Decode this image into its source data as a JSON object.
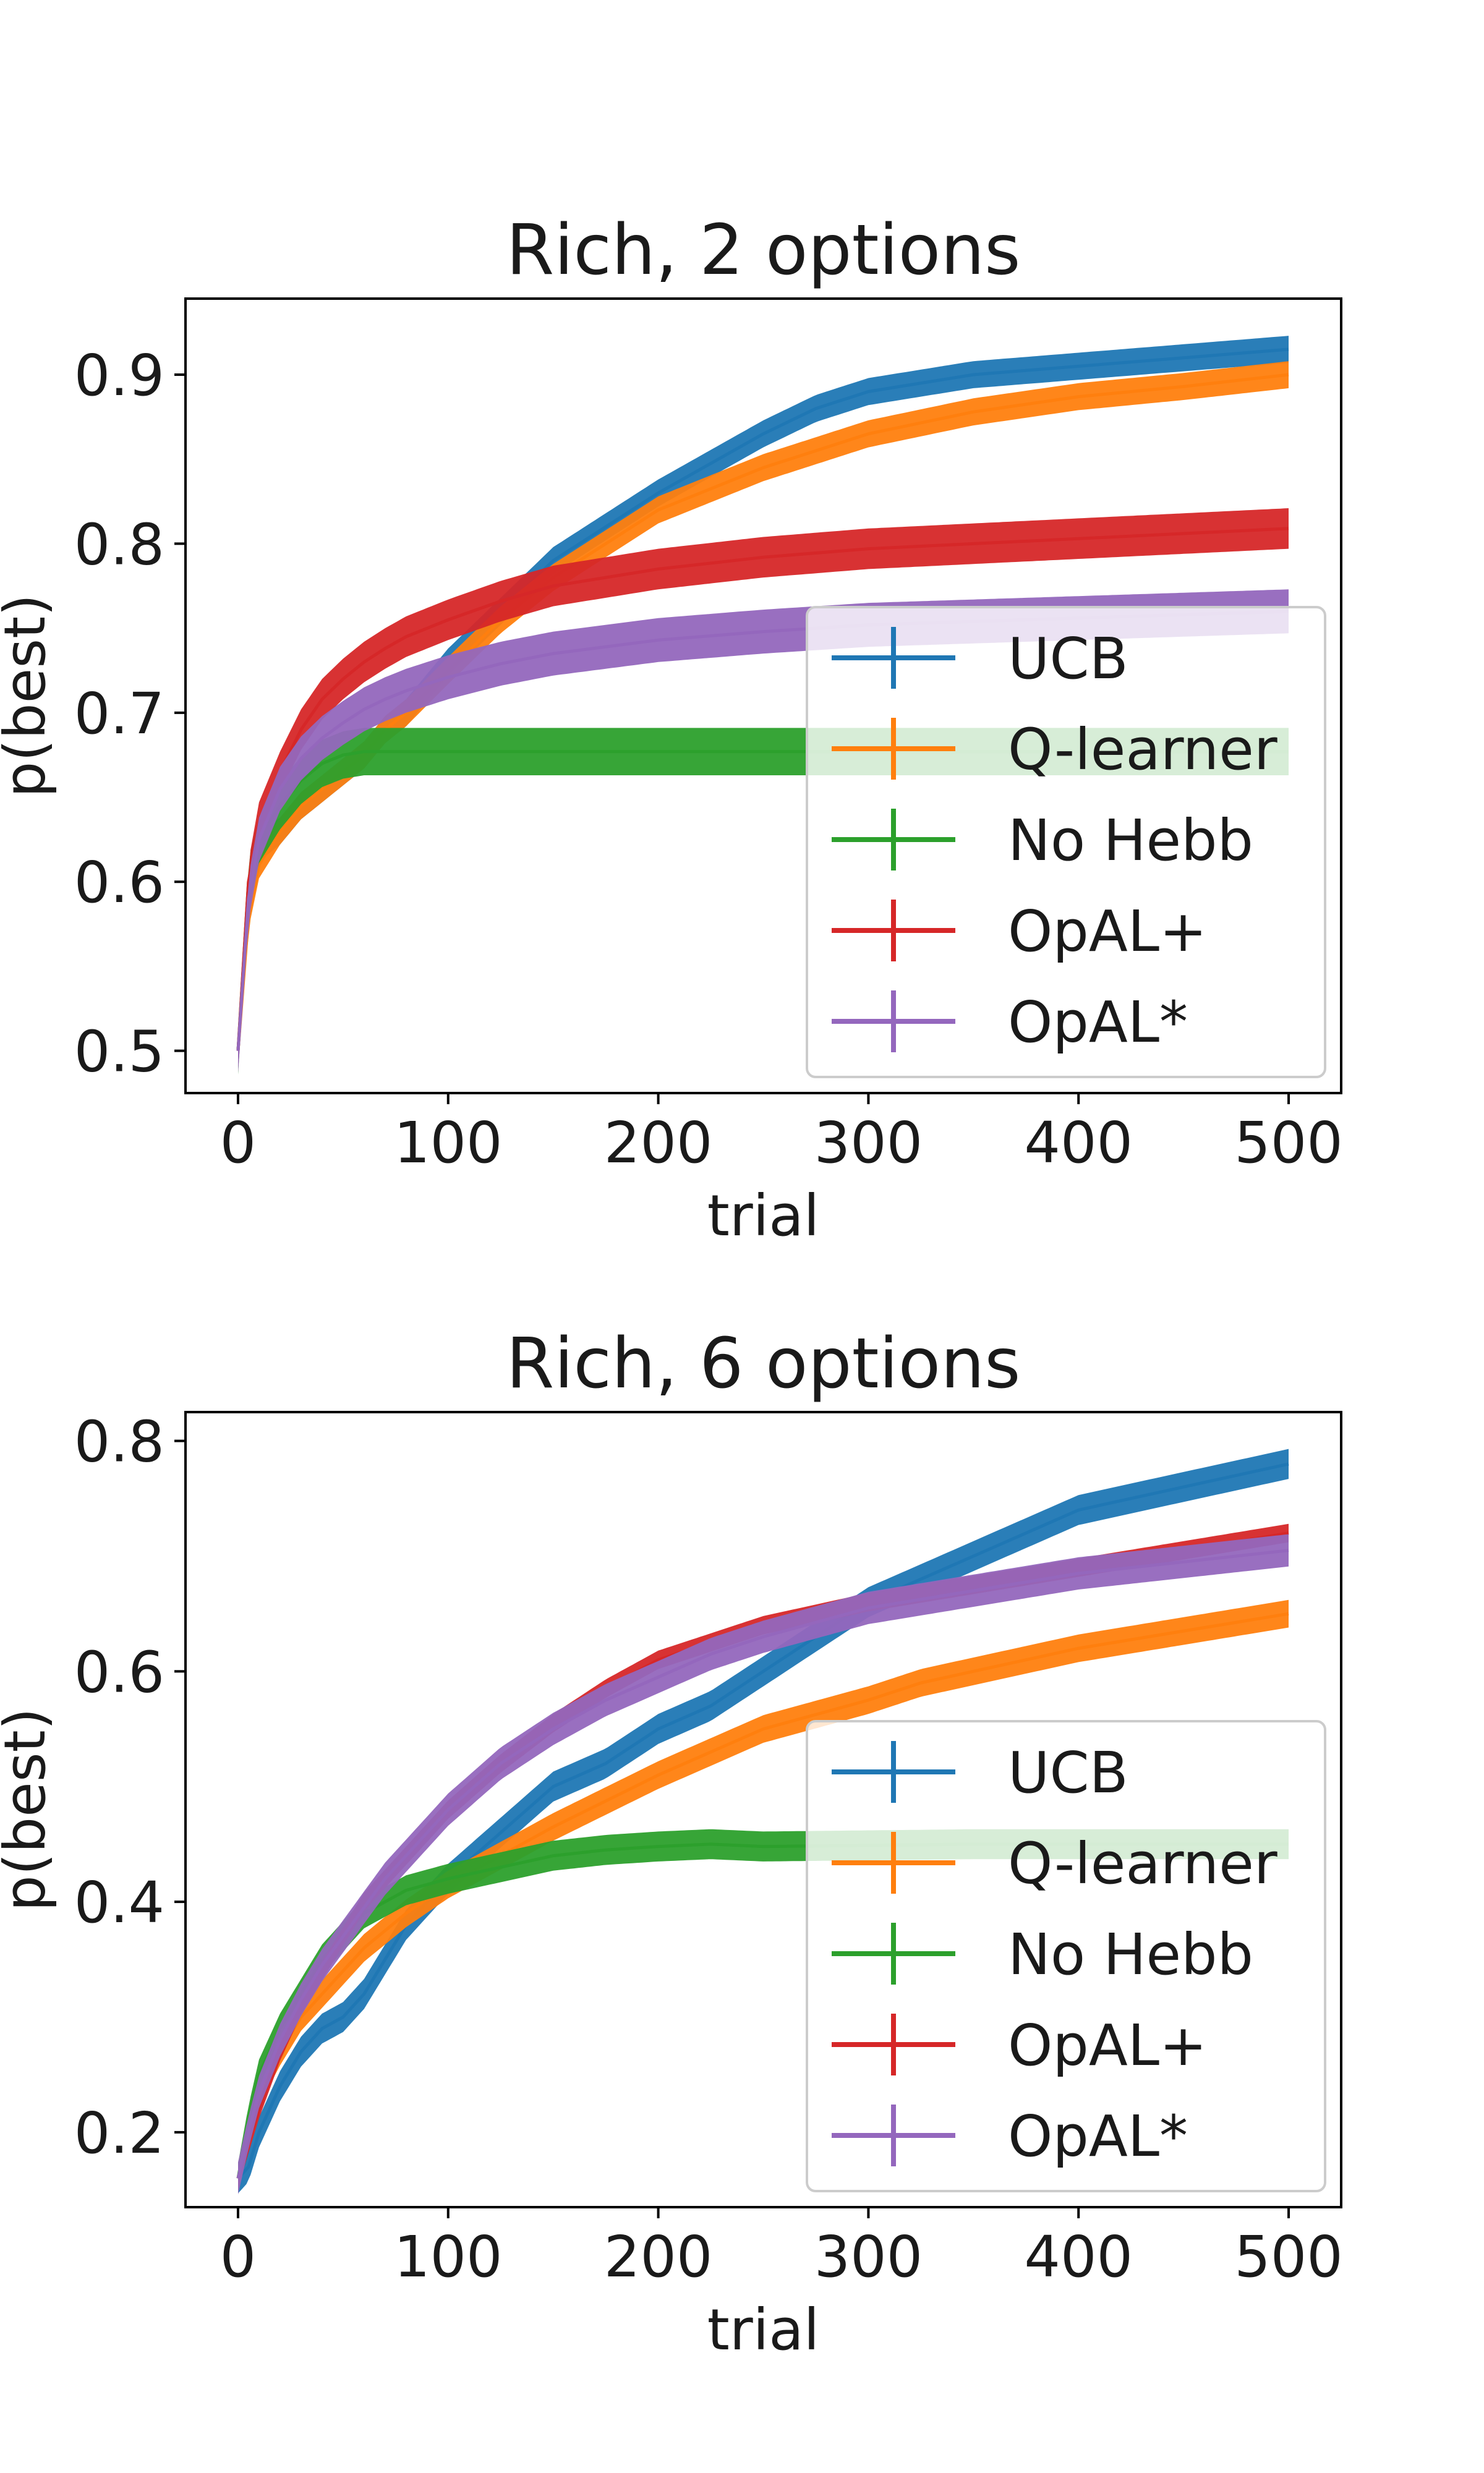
{
  "chart_data": [
    {
      "type": "line",
      "title": "Rich, 2 options",
      "xlabel": "trial",
      "ylabel": "p(best)",
      "xlim": [
        -25,
        525
      ],
      "ylim": [
        0.475,
        0.945
      ],
      "xticks": [
        0,
        100,
        200,
        300,
        400,
        500
      ],
      "xtick_labels": [
        "0",
        "100",
        "200",
        "300",
        "400",
        "500"
      ],
      "yticks": [
        0.5,
        0.6,
        0.7,
        0.8,
        0.9
      ],
      "ytick_labels": [
        "0.5",
        "0.6",
        "0.7",
        "0.8",
        "0.9"
      ],
      "grid": false,
      "legend_position": "lower-right",
      "series": [
        {
          "name": "UCB",
          "color": "#1f77b4",
          "err_band": 0.008,
          "x": [
            0,
            5,
            10,
            20,
            30,
            40,
            50,
            60,
            70,
            80,
            100,
            125,
            150,
            200,
            250,
            275,
            300,
            350,
            400,
            450,
            500
          ],
          "values": [
            0.5,
            0.59,
            0.62,
            0.63,
            0.645,
            0.655,
            0.665,
            0.675,
            0.69,
            0.7,
            0.73,
            0.76,
            0.79,
            0.83,
            0.865,
            0.88,
            0.89,
            0.9,
            0.905,
            0.91,
            0.915
          ]
        },
        {
          "name": "Q-learner",
          "color": "#ff7f0e",
          "err_band": 0.008,
          "x": [
            0,
            5,
            10,
            20,
            30,
            40,
            50,
            60,
            70,
            80,
            100,
            125,
            150,
            200,
            250,
            300,
            350,
            400,
            450,
            500
          ],
          "values": [
            0.5,
            0.58,
            0.61,
            0.63,
            0.645,
            0.655,
            0.665,
            0.675,
            0.69,
            0.7,
            0.725,
            0.755,
            0.78,
            0.82,
            0.845,
            0.865,
            0.878,
            0.887,
            0.893,
            0.9
          ]
        },
        {
          "name": "No Hebb",
          "color": "#2ca02c",
          "err_band": 0.014,
          "x": [
            0,
            5,
            10,
            20,
            30,
            40,
            50,
            55,
            60,
            500
          ],
          "values": [
            0.5,
            0.6,
            0.625,
            0.645,
            0.66,
            0.67,
            0.675,
            0.676,
            0.677,
            0.677
          ]
        },
        {
          "name": "OpAL+",
          "color": "#d62728",
          "err_band": 0.012,
          "x": [
            0,
            5,
            10,
            20,
            30,
            40,
            50,
            60,
            70,
            80,
            100,
            125,
            150,
            200,
            250,
            300,
            350,
            400,
            450,
            500
          ],
          "values": [
            0.5,
            0.6,
            0.635,
            0.665,
            0.69,
            0.708,
            0.72,
            0.73,
            0.738,
            0.745,
            0.755,
            0.766,
            0.775,
            0.785,
            0.792,
            0.797,
            0.8,
            0.803,
            0.806,
            0.809
          ]
        },
        {
          "name": "OpAL*",
          "color": "#9467bd",
          "err_band": 0.013,
          "x": [
            0,
            5,
            10,
            20,
            30,
            40,
            50,
            60,
            70,
            80,
            100,
            125,
            150,
            200,
            250,
            300,
            350,
            400,
            450,
            500
          ],
          "values": [
            0.5,
            0.59,
            0.625,
            0.655,
            0.673,
            0.685,
            0.694,
            0.702,
            0.708,
            0.713,
            0.721,
            0.729,
            0.735,
            0.743,
            0.748,
            0.752,
            0.754,
            0.756,
            0.758,
            0.76
          ]
        }
      ]
    },
    {
      "type": "line",
      "title": "Rich, 6 options",
      "xlabel": "trial",
      "ylabel": "p(best)",
      "xlim": [
        -25,
        525
      ],
      "ylim": [
        0.135,
        0.825
      ],
      "xticks": [
        0,
        100,
        200,
        300,
        400,
        500
      ],
      "xtick_labels": [
        "0",
        "100",
        "200",
        "300",
        "400",
        "500"
      ],
      "yticks": [
        0.2,
        0.4,
        0.6,
        0.8
      ],
      "ytick_labels": [
        "0.2",
        "0.4",
        "0.6",
        "0.8"
      ],
      "grid": false,
      "legend_position": "lower-right",
      "series": [
        {
          "name": "UCB",
          "color": "#1f77b4",
          "err_band": 0.013,
          "x": [
            0,
            5,
            10,
            20,
            30,
            40,
            50,
            60,
            70,
            80,
            100,
            125,
            150,
            175,
            200,
            225,
            250,
            275,
            300,
            325,
            350,
            375,
            400,
            450,
            500
          ],
          "values": [
            0.16,
            0.17,
            0.2,
            0.24,
            0.27,
            0.29,
            0.3,
            0.32,
            0.35,
            0.38,
            0.42,
            0.46,
            0.5,
            0.52,
            0.55,
            0.57,
            0.6,
            0.63,
            0.66,
            0.68,
            0.7,
            0.72,
            0.74,
            0.76,
            0.78
          ]
        },
        {
          "name": "Q-learner",
          "color": "#ff7f0e",
          "err_band": 0.012,
          "x": [
            0,
            5,
            10,
            20,
            30,
            40,
            50,
            60,
            70,
            80,
            100,
            125,
            150,
            200,
            250,
            300,
            325,
            350,
            400,
            450,
            500
          ],
          "values": [
            0.16,
            0.2,
            0.235,
            0.27,
            0.3,
            0.32,
            0.34,
            0.36,
            0.375,
            0.39,
            0.415,
            0.44,
            0.465,
            0.51,
            0.55,
            0.575,
            0.59,
            0.6,
            0.62,
            0.635,
            0.65
          ]
        },
        {
          "name": "No Hebb",
          "color": "#2ca02c",
          "err_band": 0.013,
          "x": [
            0,
            5,
            10,
            20,
            30,
            40,
            50,
            60,
            70,
            80,
            100,
            125,
            150,
            175,
            200,
            225,
            250,
            300,
            350,
            400,
            450,
            500
          ],
          "values": [
            0.16,
            0.21,
            0.25,
            0.29,
            0.32,
            0.35,
            0.37,
            0.39,
            0.4,
            0.41,
            0.42,
            0.43,
            0.44,
            0.445,
            0.448,
            0.45,
            0.448,
            0.449,
            0.45,
            0.45,
            0.45,
            0.45
          ]
        },
        {
          "name": "OpAL+",
          "color": "#d62728",
          "err_band": 0.008,
          "x": [
            0,
            5,
            10,
            20,
            30,
            40,
            50,
            60,
            70,
            80,
            100,
            125,
            150,
            175,
            200,
            225,
            250,
            300,
            350,
            400,
            450,
            500
          ],
          "values": [
            0.16,
            0.19,
            0.22,
            0.27,
            0.31,
            0.34,
            0.37,
            0.4,
            0.42,
            0.44,
            0.48,
            0.52,
            0.555,
            0.585,
            0.61,
            0.625,
            0.64,
            0.66,
            0.675,
            0.69,
            0.705,
            0.72
          ]
        },
        {
          "name": "OpAL*",
          "color": "#9467bd",
          "err_band": 0.014,
          "x": [
            0,
            5,
            10,
            20,
            30,
            40,
            50,
            60,
            70,
            80,
            100,
            125,
            150,
            175,
            200,
            225,
            250,
            300,
            350,
            400,
            450,
            500
          ],
          "values": [
            0.16,
            0.2,
            0.235,
            0.28,
            0.315,
            0.345,
            0.37,
            0.395,
            0.42,
            0.44,
            0.48,
            0.52,
            0.55,
            0.575,
            0.595,
            0.615,
            0.63,
            0.655,
            0.67,
            0.685,
            0.695,
            0.705
          ]
        }
      ]
    }
  ]
}
